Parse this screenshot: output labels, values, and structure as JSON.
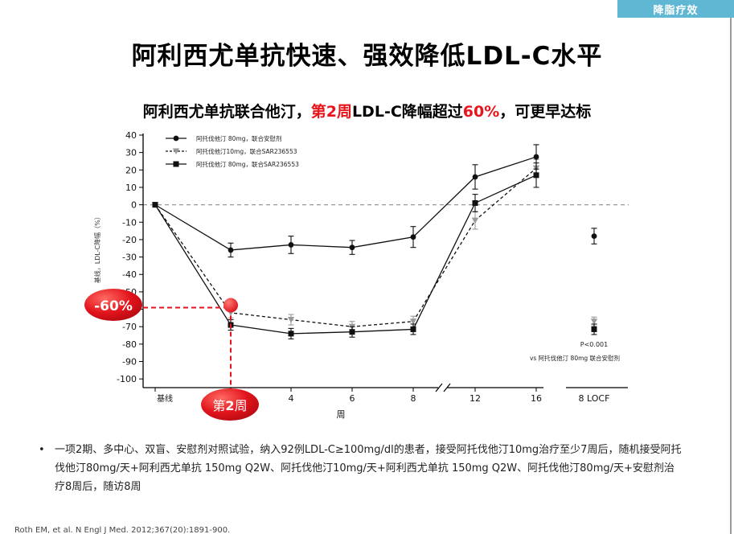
{
  "header": {
    "tag_label": "降脂疗效",
    "title": "阿利西尤单抗快速、强效降低LDL-C水平",
    "subtitle_part1": "阿利西尤单抗联合他汀，",
    "subtitle_highlight1": "第2周",
    "subtitle_part2": "LDL-C降幅超过",
    "subtitle_highlight2": "60%",
    "subtitle_part3": "，可更早达标"
  },
  "chart_data": {
    "type": "line",
    "ylabel": "基线，LDL-C降幅（%）",
    "xlabel": "周",
    "ylim": [
      -110,
      40
    ],
    "yticks": [
      40,
      30,
      20,
      10,
      0,
      -10,
      -20,
      -30,
      -40,
      -50,
      -60,
      -70,
      -80,
      -90,
      -100
    ],
    "x": [
      0,
      2,
      4,
      6,
      8,
      12,
      16
    ],
    "x_tick_labels": [
      "基线",
      "2",
      "4",
      "6",
      "8",
      "12",
      "16"
    ],
    "locf_label": "8 LOCF",
    "reference_line": 0,
    "series": [
      {
        "name": "阿托伐他汀 80mg，联合安慰剂",
        "marker": "circle",
        "line": "solid",
        "color": "#111111",
        "values": [
          0,
          -26,
          -23,
          -24.5,
          -18.5,
          16,
          27.5
        ],
        "errors": [
          0,
          4,
          5,
          4,
          6,
          7,
          7
        ],
        "locf": -18,
        "locf_error": 4.5
      },
      {
        "name": "阿托伐他汀10mg，联合SAR236553",
        "marker": "triangle-down",
        "line": "dashed",
        "color": "#999999",
        "values": [
          0,
          -62,
          -66,
          -70,
          -67,
          -9,
          21
        ],
        "errors": [
          0,
          3,
          3,
          3,
          3,
          5,
          5
        ],
        "locf": -67,
        "locf_error": 2.5
      },
      {
        "name": "阿托伐他汀 80mg，联合SAR236553",
        "marker": "square",
        "line": "solid",
        "color": "#111111",
        "values": [
          0,
          -69,
          -74,
          -73,
          -71.5,
          1,
          17
        ],
        "errors": [
          0,
          3,
          3,
          3,
          3,
          5,
          7
        ],
        "locf": -71.5,
        "locf_error": 3
      }
    ],
    "annotation_pvalue": "P<0.001",
    "annotation_vs": "vs 阿托伐他汀 80mg 联合安慰剂",
    "callout_value": -60,
    "callout_value_label": "-60%",
    "callout_week_prefix": "第",
    "callout_week_number": "2",
    "callout_week_suffix": "周"
  },
  "footnote": {
    "bullet": "•",
    "text": "一项2期、多中心、双盲、安慰剂对照试验，纳入92例LDL-C≥100mg/dl的患者，接受阿托伐他汀10mg治疗至少7周后，随机接受阿托伐他汀80mg/天+阿利西尤单抗 150mg Q2W、阿托伐他汀10mg/天+阿利西尤单抗 150mg Q2W、阿托伐他汀80mg/天+安慰剂治疗8周后，随访8周"
  },
  "reference": "Roth EM, et al. N Engl J Med. 2012;367(20):1891-900."
}
